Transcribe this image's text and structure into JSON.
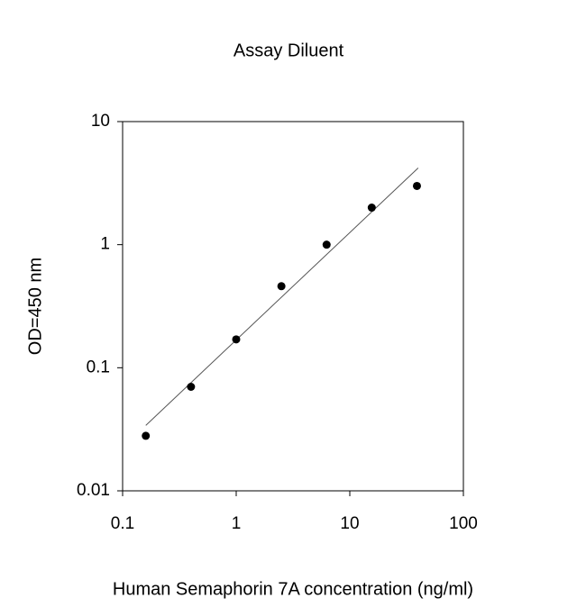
{
  "chart_data": {
    "type": "scatter",
    "title": "Assay Diluent",
    "x_label": "Human Semaphorin 7A concentration (ng/ml)",
    "y_label": "OD=450 nm",
    "x": [
      0.16,
      0.4,
      1,
      2.5,
      6.25,
      15.6,
      39
    ],
    "values": [
      0.028,
      0.07,
      0.17,
      0.46,
      1.0,
      2.0,
      3.0
    ],
    "color": "#000000",
    "fit": {
      "x": [
        0.16,
        40
      ],
      "values": [
        0.034,
        4.2
      ],
      "color": "#555555"
    },
    "xscale": "log",
    "yscale": "log",
    "xlim": [
      0.1,
      100
    ],
    "xticks": [
      0.1,
      1,
      10,
      100
    ],
    "ylim": [
      0.01,
      10
    ],
    "yticks": [
      0.01,
      0.1,
      1,
      10
    ],
    "grid": false
  }
}
